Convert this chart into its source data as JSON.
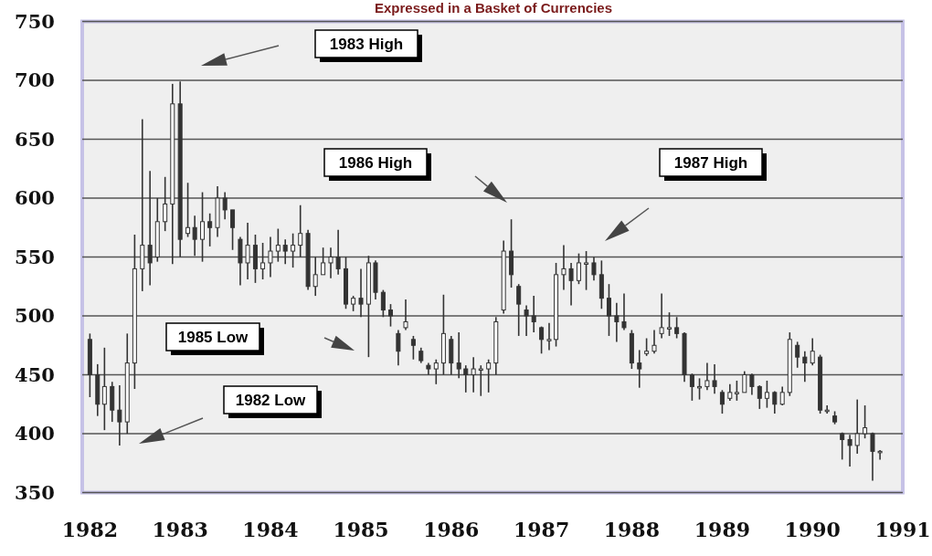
{
  "chart_data": {
    "type": "candlestick",
    "title": "Expressed in a Basket of Currencies",
    "x": [
      "1982-01",
      "1982-02",
      "1982-03",
      "1982-04",
      "1982-05",
      "1982-06",
      "1982-07",
      "1982-08",
      "1982-09",
      "1982-10",
      "1982-11",
      "1982-12",
      "1983-01",
      "1983-02",
      "1983-03",
      "1983-04",
      "1983-05",
      "1983-06",
      "1983-07",
      "1983-08",
      "1983-09",
      "1983-10",
      "1983-11",
      "1983-12",
      "1984-01",
      "1984-02",
      "1984-03",
      "1984-04",
      "1984-05",
      "1984-06",
      "1984-07",
      "1984-08",
      "1984-09",
      "1984-10",
      "1984-11",
      "1984-12",
      "1985-01",
      "1985-02",
      "1985-03",
      "1985-04",
      "1985-05",
      "1985-06",
      "1985-07",
      "1985-08",
      "1985-09",
      "1985-10",
      "1985-11",
      "1985-12",
      "1986-01",
      "1986-02",
      "1986-03",
      "1986-04",
      "1986-05",
      "1986-06",
      "1986-07",
      "1986-08",
      "1986-09",
      "1986-10",
      "1986-11",
      "1986-12",
      "1987-01",
      "1987-02",
      "1987-03",
      "1987-04",
      "1987-05",
      "1987-06",
      "1987-07",
      "1987-08",
      "1987-09",
      "1987-10",
      "1987-11",
      "1987-12",
      "1988-01",
      "1988-02",
      "1988-03",
      "1988-04",
      "1988-05",
      "1988-06",
      "1988-07",
      "1988-08",
      "1988-09",
      "1988-10",
      "1988-11",
      "1988-12",
      "1989-01",
      "1989-02",
      "1989-03",
      "1989-04",
      "1989-05",
      "1989-06",
      "1989-07",
      "1989-08",
      "1989-09",
      "1989-10",
      "1989-11",
      "1989-12",
      "1990-01",
      "1990-02",
      "1990-03",
      "1990-04",
      "1990-05",
      "1990-06",
      "1990-07",
      "1990-08",
      "1990-09",
      "1990-10"
    ],
    "ohlc": [
      [
        480,
        485,
        431,
        450
      ],
      [
        450,
        459,
        415,
        425
      ],
      [
        425,
        473,
        403,
        440
      ],
      [
        440,
        444,
        410,
        420
      ],
      [
        420,
        441,
        390,
        410
      ],
      [
        410,
        485,
        400,
        460
      ],
      [
        460,
        569,
        438,
        540
      ],
      [
        540,
        667,
        521,
        560
      ],
      [
        560,
        623,
        526,
        545
      ],
      [
        550,
        600,
        546,
        580
      ],
      [
        580,
        618,
        572,
        595
      ],
      [
        595,
        697,
        544,
        680
      ],
      [
        680,
        699,
        550,
        565
      ],
      [
        570,
        613,
        567,
        575
      ],
      [
        575,
        585,
        551,
        565
      ],
      [
        565,
        605,
        546,
        580
      ],
      [
        580,
        587,
        559,
        575
      ],
      [
        575,
        610,
        567,
        600
      ],
      [
        600,
        605,
        582,
        590
      ],
      [
        590,
        590,
        556,
        575
      ],
      [
        565,
        567,
        526,
        545
      ],
      [
        545,
        579,
        531,
        560
      ],
      [
        560,
        569,
        528,
        540
      ],
      [
        540,
        562,
        531,
        545
      ],
      [
        545,
        567,
        533,
        555
      ],
      [
        555,
        574,
        546,
        560
      ],
      [
        560,
        565,
        544,
        555
      ],
      [
        555,
        570,
        541,
        560
      ],
      [
        560,
        594,
        550,
        570
      ],
      [
        570,
        573,
        522,
        525
      ],
      [
        525,
        550,
        517,
        535
      ],
      [
        535,
        558,
        535,
        545
      ],
      [
        545,
        558,
        532,
        550
      ],
      [
        550,
        573,
        535,
        540
      ],
      [
        540,
        550,
        506,
        510
      ],
      [
        510,
        517,
        504,
        515
      ],
      [
        515,
        540,
        499,
        510
      ],
      [
        510,
        551,
        465,
        545
      ],
      [
        545,
        547,
        514,
        520
      ],
      [
        520,
        522,
        499,
        505
      ],
      [
        505,
        510,
        491,
        500
      ],
      [
        485,
        488,
        458,
        470
      ],
      [
        490,
        514,
        488,
        495
      ],
      [
        480,
        483,
        463,
        475
      ],
      [
        470,
        473,
        460,
        462
      ],
      [
        458,
        460,
        450,
        455
      ],
      [
        455,
        463,
        442,
        460
      ],
      [
        460,
        518,
        450,
        485
      ],
      [
        480,
        483,
        450,
        460
      ],
      [
        460,
        486,
        447,
        455
      ],
      [
        455,
        458,
        435,
        450
      ],
      [
        450,
        465,
        435,
        455
      ],
      [
        455,
        458,
        432,
        455
      ],
      [
        455,
        463,
        435,
        460
      ],
      [
        460,
        499,
        450,
        495
      ],
      [
        505,
        564,
        502,
        555
      ],
      [
        555,
        582,
        524,
        535
      ],
      [
        525,
        527,
        483,
        510
      ],
      [
        505,
        509,
        483,
        500
      ],
      [
        500,
        517,
        486,
        495
      ],
      [
        490,
        491,
        468,
        480
      ],
      [
        480,
        494,
        471,
        480
      ],
      [
        480,
        545,
        474,
        535
      ],
      [
        535,
        560,
        522,
        540
      ],
      [
        540,
        545,
        509,
        530
      ],
      [
        530,
        553,
        527,
        545
      ],
      [
        545,
        555,
        522,
        545
      ],
      [
        545,
        550,
        530,
        535
      ],
      [
        535,
        547,
        506,
        515
      ],
      [
        515,
        527,
        483,
        500
      ],
      [
        500,
        511,
        478,
        495
      ],
      [
        495,
        519,
        488,
        490
      ],
      [
        485,
        488,
        455,
        460
      ],
      [
        460,
        471,
        439,
        455
      ],
      [
        468,
        481,
        466,
        470
      ],
      [
        470,
        488,
        468,
        475
      ],
      [
        485,
        519,
        481,
        490
      ],
      [
        490,
        503,
        483,
        490
      ],
      [
        490,
        499,
        481,
        485
      ],
      [
        485,
        486,
        444,
        450
      ],
      [
        450,
        451,
        428,
        440
      ],
      [
        440,
        447,
        429,
        440
      ],
      [
        440,
        460,
        437,
        445
      ],
      [
        445,
        459,
        434,
        440
      ],
      [
        435,
        437,
        417,
        425
      ],
      [
        430,
        442,
        428,
        435
      ],
      [
        435,
        445,
        428,
        435
      ],
      [
        435,
        453,
        435,
        450
      ],
      [
        450,
        451,
        433,
        440
      ],
      [
        440,
        441,
        421,
        430
      ],
      [
        430,
        445,
        422,
        435
      ],
      [
        435,
        436,
        417,
        425
      ],
      [
        425,
        440,
        424,
        435
      ],
      [
        435,
        486,
        432,
        480
      ],
      [
        475,
        478,
        456,
        465
      ],
      [
        465,
        470,
        444,
        460
      ],
      [
        460,
        481,
        458,
        470
      ],
      [
        465,
        467,
        417,
        420
      ],
      [
        420,
        424,
        417,
        420
      ],
      [
        415,
        419,
        408,
        410
      ],
      [
        400,
        401,
        378,
        395
      ],
      [
        395,
        399,
        372,
        390
      ],
      [
        390,
        429,
        383,
        400
      ],
      [
        400,
        424,
        396,
        405
      ],
      [
        400,
        401,
        360,
        385
      ],
      [
        385,
        386,
        378,
        385
      ]
    ],
    "color": "#333333",
    "xlim": [
      "1981-12",
      "1991-01"
    ],
    "xticks": [
      {
        "value": "1982",
        "label": "1982"
      },
      {
        "value": "1983",
        "label": "1983"
      },
      {
        "value": "1984",
        "label": "1984"
      },
      {
        "value": "1985",
        "label": "1985"
      },
      {
        "value": "1986",
        "label": "1986"
      },
      {
        "value": "1987",
        "label": "1987"
      },
      {
        "value": "1988",
        "label": "1988"
      },
      {
        "value": "1989",
        "label": "1989"
      },
      {
        "value": "1990",
        "label": "1990"
      },
      {
        "value": "1991",
        "label": "1991"
      }
    ],
    "ylim": [
      350,
      750
    ],
    "yticks": [
      350,
      400,
      450,
      500,
      550,
      600,
      650,
      700,
      750
    ],
    "grid": "y",
    "annotations": [
      "1983 High",
      "1986 High",
      "1987 High",
      "1985 Low",
      "1982 Low"
    ]
  }
}
